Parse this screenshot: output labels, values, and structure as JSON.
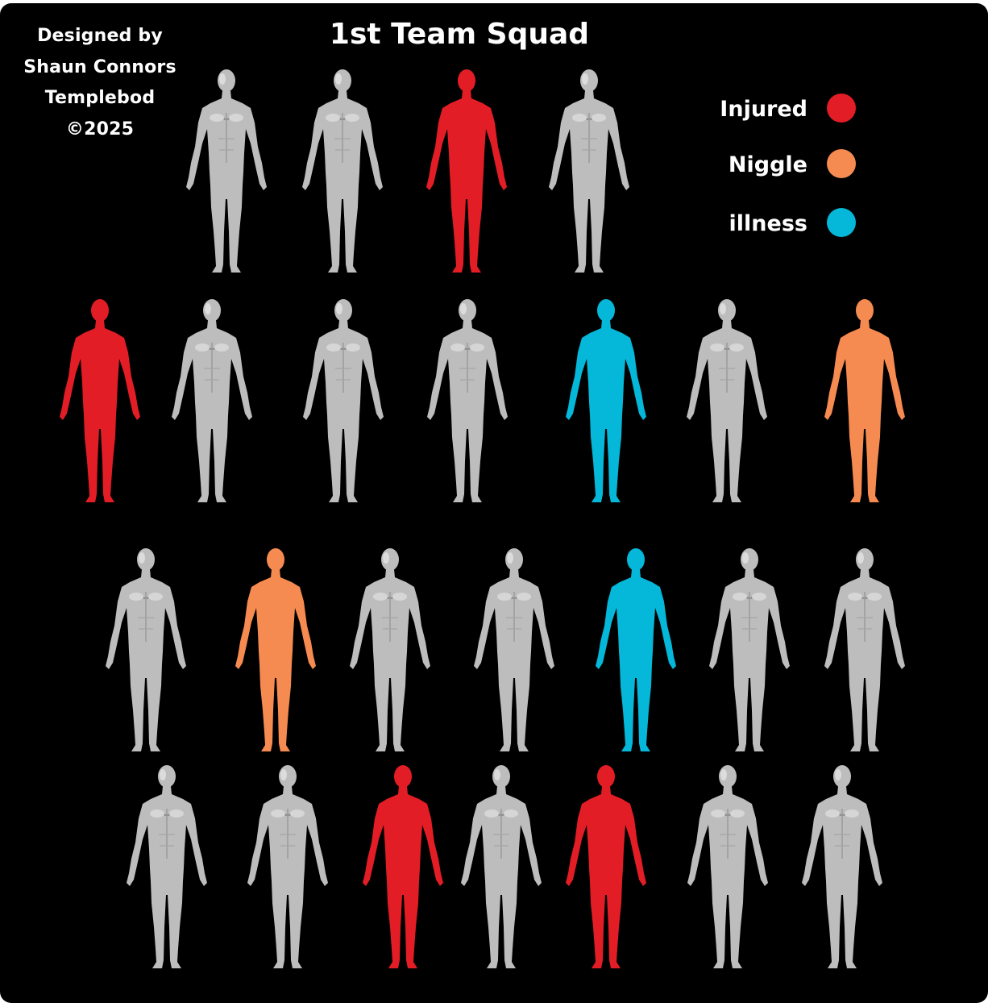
{
  "credit": {
    "line1": "Designed by",
    "line2": "Shaun Connors",
    "line3": "Templebod",
    "line4": "©2025"
  },
  "title": "1st Team Squad",
  "legend": [
    {
      "label": "Injured",
      "color": "#e31d25"
    },
    {
      "label": "Niggle",
      "color": "#f68b52"
    },
    {
      "label": "illness",
      "color": "#05b7d8"
    }
  ],
  "colors": {
    "fit": "#bdbdbd",
    "background": "#000000"
  },
  "squad": [
    [
      "fit",
      "fit",
      "injured",
      "fit"
    ],
    [
      "injured",
      "fit",
      "fit",
      "fit",
      "illness",
      "fit",
      "niggle"
    ],
    [
      "fit",
      "niggle",
      "fit",
      "fit",
      "illness",
      "fit",
      "fit"
    ],
    [
      "fit",
      "fit",
      "injured",
      "fit",
      "injured",
      "fit",
      "fit"
    ]
  ]
}
